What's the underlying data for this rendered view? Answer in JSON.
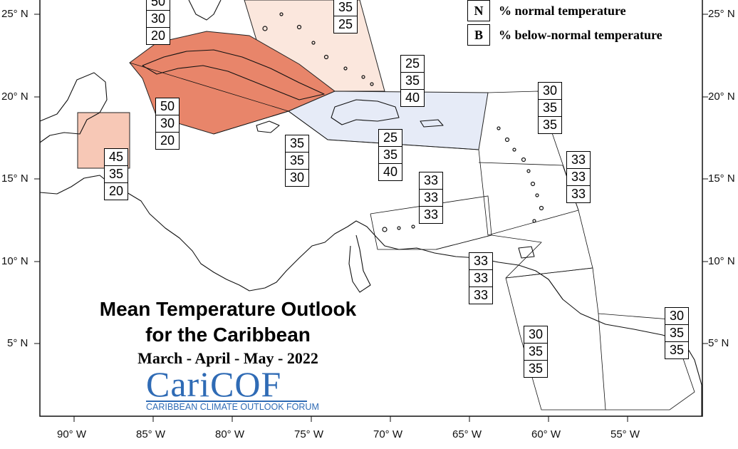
{
  "title": {
    "line1": "Mean Temperature Outlook",
    "line2": "for the Caribbean",
    "period": "March - April - May - 2022"
  },
  "logo": {
    "text": "CariCOF",
    "subtitle": "CARIBBEAN CLIMATE OUTLOOK FORUM",
    "color": "#2f6bb5"
  },
  "legend": [
    {
      "key": "N",
      "label": "% normal temperature"
    },
    {
      "key": "B",
      "label": "% below-normal temperature"
    }
  ],
  "axes": {
    "longitude": [
      "90° W",
      "85° W",
      "80° W",
      "75° W",
      "70° W",
      "65° W",
      "60° W",
      "55° W"
    ],
    "latitude": [
      "25° N",
      "20° N",
      "15° N",
      "10° N",
      "5° N"
    ]
  },
  "colors": {
    "above_high": "#e8856a",
    "above_mid": "#f7c8b6",
    "above_low": "#fbe7dd",
    "below_low": "#e6ebf7"
  },
  "regions": [
    {
      "id": "bahamas-north",
      "values": [
        "",
        "35",
        "25"
      ]
    },
    {
      "id": "cuba-northwest",
      "values": [
        "50",
        "30",
        "20"
      ]
    },
    {
      "id": "turks-caicos",
      "values": [
        "25",
        "35",
        "40"
      ]
    },
    {
      "id": "cuba-south",
      "values": [
        "50",
        "30",
        "20"
      ]
    },
    {
      "id": "belize",
      "values": [
        "45",
        "35",
        "20"
      ]
    },
    {
      "id": "jamaica",
      "values": [
        "35",
        "35",
        "30"
      ]
    },
    {
      "id": "hispaniola-puerto-rico",
      "values": [
        "25",
        "35",
        "40"
      ]
    },
    {
      "id": "leeward-islands",
      "values": [
        "30",
        "35",
        "35"
      ]
    },
    {
      "id": "windward-islands",
      "values": [
        "33",
        "33",
        "33"
      ]
    },
    {
      "id": "central-caribbean-sea",
      "values": [
        "33",
        "33",
        "33"
      ]
    },
    {
      "id": "trinidad-tobago",
      "values": [
        "33",
        "33",
        "33"
      ]
    },
    {
      "id": "guyana",
      "values": [
        "30",
        "35",
        "35"
      ]
    },
    {
      "id": "french-guiana",
      "values": [
        "30",
        "35",
        "35"
      ]
    }
  ]
}
